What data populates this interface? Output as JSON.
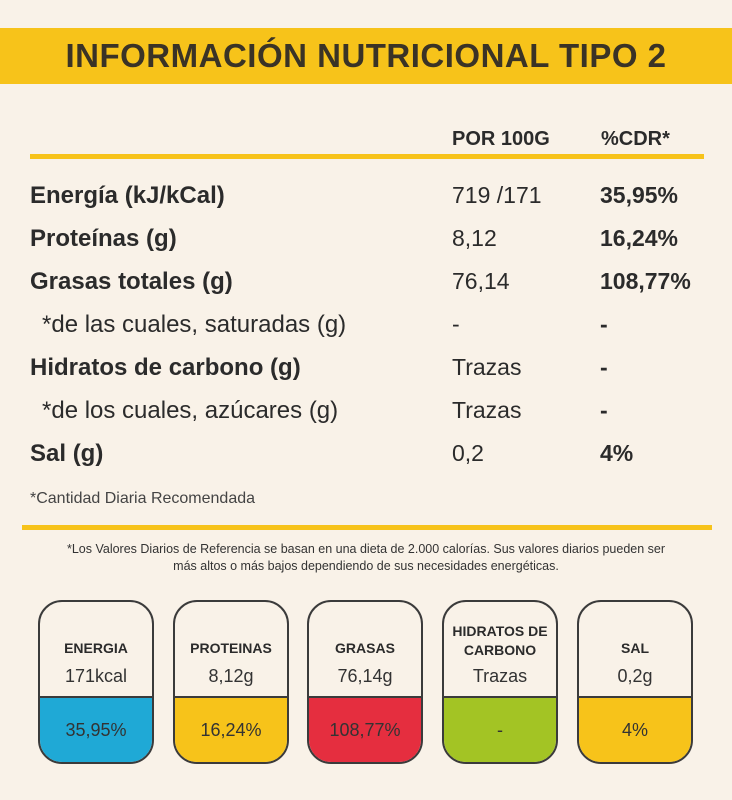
{
  "title": "INFORMACIÓN NUTRICIONAL TIPO 2",
  "columns": {
    "per100": "POR 100G",
    "cdr": "%CDR*"
  },
  "rows": [
    {
      "label": "Energía (kJ/kCal)",
      "value": "719 /171",
      "cdr": "35,95%",
      "style": "bold"
    },
    {
      "label": "Proteínas (g)",
      "value": "8,12",
      "cdr": "16,24%",
      "style": "bold"
    },
    {
      "label": "Grasas totales (g)",
      "value": "76,14",
      "cdr": "108,77%",
      "style": "bold"
    },
    {
      "label": "*de las cuales, saturadas (g)",
      "value": "-",
      "cdr": "-",
      "style": "indent"
    },
    {
      "label": "Hidratos de carbono (g)",
      "value": "Trazas",
      "cdr": "-",
      "style": "bold"
    },
    {
      "label": "*de los cuales, azúcares (g)",
      "value": "Trazas",
      "cdr": "-",
      "style": "indent"
    },
    {
      "label": "Sal (g)",
      "value": "0,2",
      "cdr": "4%",
      "style": "bold"
    }
  ],
  "footnote": "*Cantidad Diaria Recomendada",
  "note_line1": "*Los Valores Diarios de Referencia se basan en una dieta de 2.000 calorías.  Sus valores diarios pueden ser",
  "note_line2": "más altos o más bajos dependiendo de sus necesidades energéticas.",
  "cards": [
    {
      "name": "ENERGIA",
      "amount": "171kcal",
      "percent": "35,95%",
      "color": "#1fa9d6"
    },
    {
      "name": "PROTEINAS",
      "amount": "8,12g",
      "percent": "16,24%",
      "color": "#f7c31a"
    },
    {
      "name": "GRASAS",
      "amount": "76,14g",
      "percent": "108,77%",
      "color": "#e52e3f"
    },
    {
      "name_line1": "HIDRATOS DE",
      "name_line2": "CARBONO",
      "amount": "Trazas",
      "percent": "-",
      "color": "#a3c424"
    },
    {
      "name": "SAL",
      "amount": "0,2g",
      "percent": "4%",
      "color": "#f7c31a"
    }
  ],
  "colors": {
    "accent": "#f7c31a",
    "background": "#f9f2e8",
    "text": "#2b2b2b"
  }
}
